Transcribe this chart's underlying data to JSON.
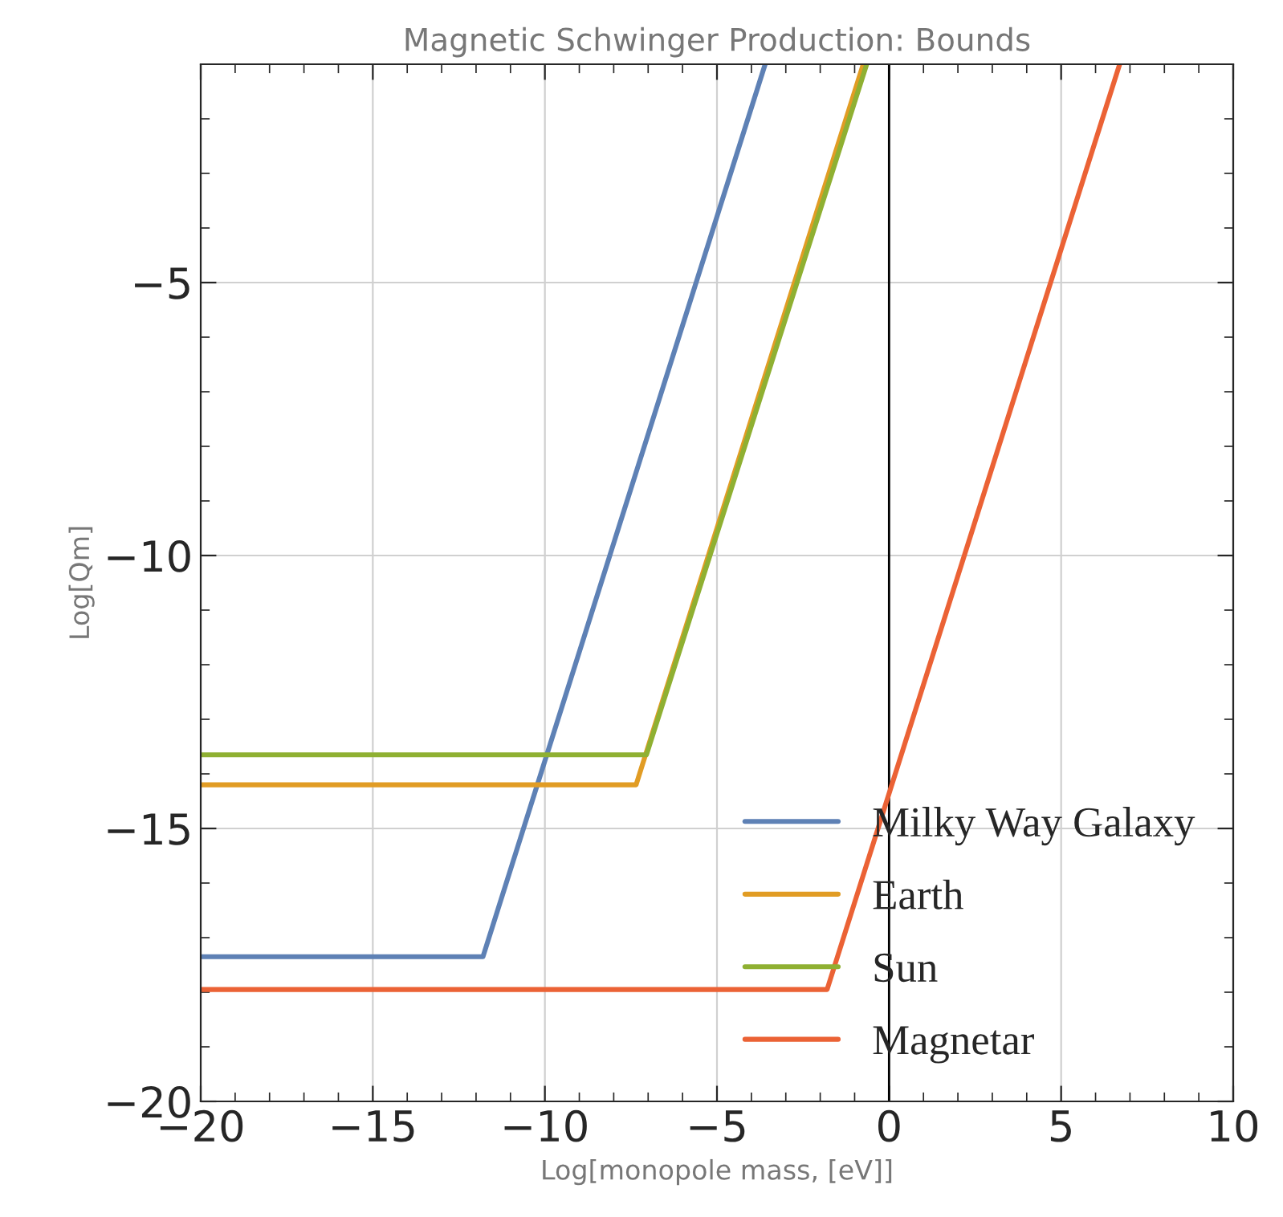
{
  "chart_data": {
    "type": "line",
    "title": "Magnetic Schwinger Production: Bounds",
    "xlabel": "Log[monopole mass, [eV]]",
    "ylabel": "Log[Qm]",
    "xlim": [
      -20,
      10
    ],
    "ylim": [
      -20,
      -1
    ],
    "xticks": [
      {
        "value": -20,
        "label": "−20"
      },
      {
        "value": -15,
        "label": "−15"
      },
      {
        "value": -10,
        "label": "−10"
      },
      {
        "value": -5,
        "label": "−5"
      },
      0,
      5,
      10
    ],
    "yticks": [
      {
        "value": -20,
        "label": "−20"
      },
      {
        "value": -15,
        "label": "−15"
      },
      {
        "value": -10,
        "label": "−10"
      },
      {
        "value": -5,
        "label": "−5"
      }
    ],
    "grid": true,
    "legend": "bottom right",
    "ref_lines": [
      {
        "axis": "x",
        "value": 0,
        "color": "#000000"
      }
    ],
    "series": [
      {
        "name": "Milky Way Galaxy",
        "color": "#5e81b5",
        "x": [
          -20,
          -11.8,
          -3.6
        ],
        "values": [
          -17.35,
          -17.35,
          -1
        ]
      },
      {
        "name": "Earth",
        "color": "#e19c24",
        "x": [
          -20,
          -7.35,
          -0.75
        ],
        "values": [
          -14.2,
          -14.2,
          -1
        ]
      },
      {
        "name": "Sun",
        "color": "#8fb032",
        "x": [
          -20,
          -7.05,
          -0.65
        ],
        "values": [
          -13.65,
          -13.65,
          -1
        ]
      },
      {
        "name": "Magnetar",
        "color": "#eb6235",
        "x": [
          -20,
          -1.8,
          6.7
        ],
        "values": [
          -17.95,
          -17.95,
          -1
        ]
      }
    ]
  }
}
